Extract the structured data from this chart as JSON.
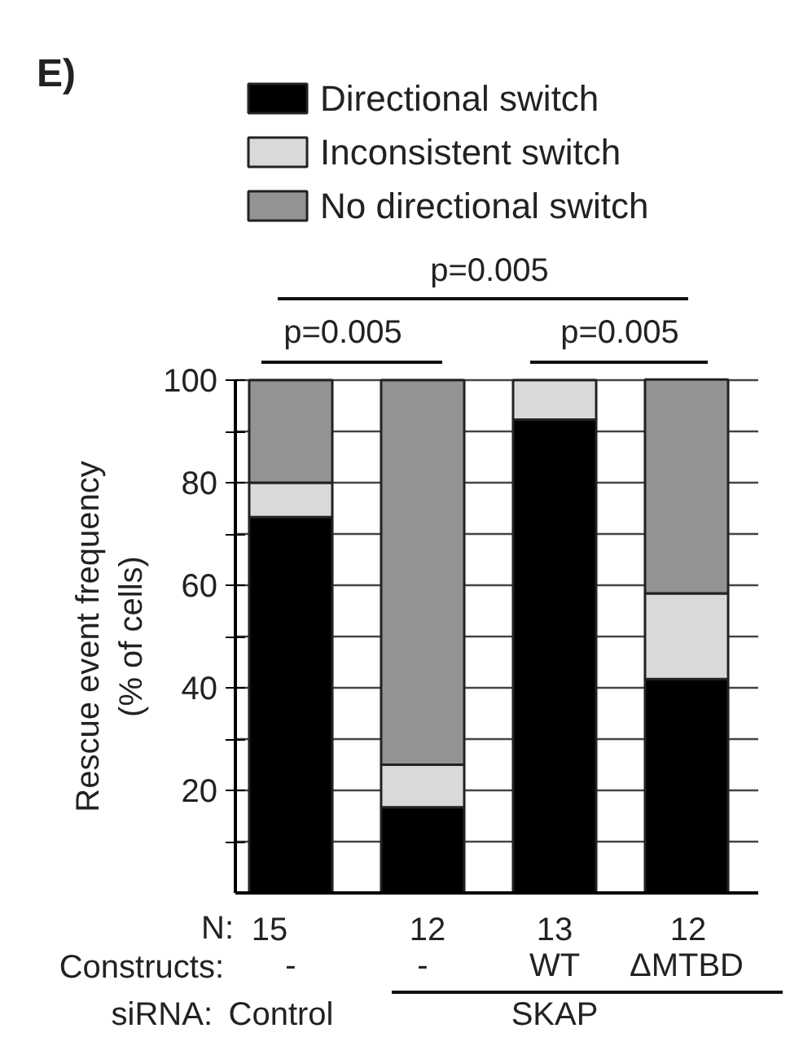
{
  "chart_data": {
    "type": "bar",
    "title": "E)",
    "ylabel": "Rescue event frequency\n(% of cells)",
    "categories": [
      "-",
      "-",
      "WT",
      "ΔMTBD"
    ],
    "stacked": true,
    "series": [
      {
        "name": "Directional switch",
        "color": "#000000",
        "values": [
          73.3,
          16.7,
          92.3,
          41.7
        ]
      },
      {
        "name": "Inconsistent switch",
        "color": "#d9d9d9",
        "values": [
          6.7,
          8.3,
          7.7,
          16.7
        ]
      },
      {
        "name": "No directional switch",
        "color": "#939393",
        "values": [
          20,
          75,
          0,
          41.7
        ]
      }
    ],
    "ylim": [
      0,
      100
    ],
    "yticks": [
      {
        "value": 10,
        "label": null
      },
      20,
      {
        "value": 30,
        "label": null
      },
      40,
      {
        "value": 50,
        "label": null
      },
      60,
      {
        "value": 70,
        "label": null
      },
      80,
      {
        "value": 90,
        "label": null
      },
      100
    ],
    "grid": "y",
    "legend": "top",
    "annotations": [
      "p=0.005",
      "p=0.005",
      "p=0.005",
      "N:",
      "15",
      "12",
      "13",
      "12",
      "Constructs:",
      "siRNA:",
      "Control",
      "SKAP"
    ]
  }
}
